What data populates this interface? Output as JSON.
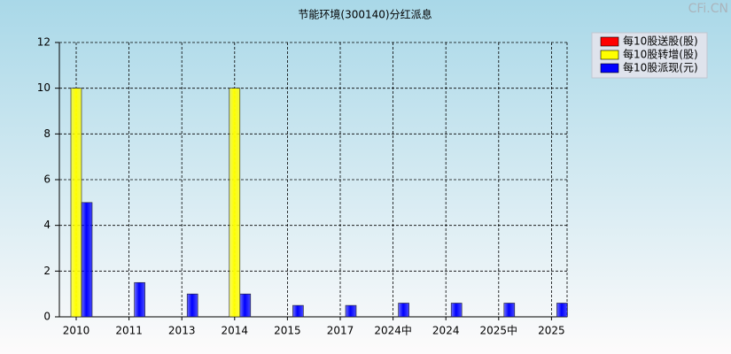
{
  "chart_data": {
    "type": "bar",
    "title": "节能环境(300140)分红派息",
    "watermark": "CFi.CN",
    "categories": [
      "2010",
      "2011",
      "2013",
      "2014",
      "2015",
      "2017",
      "2024中",
      "2024",
      "2025中",
      "2025"
    ],
    "series": [
      {
        "name": "每10股送股(股)",
        "color": "#ff0000",
        "values": [
          0,
          0,
          0,
          0,
          0,
          0,
          0,
          0,
          0,
          0
        ]
      },
      {
        "name": "每10股转增(股)",
        "color": "#ffff00",
        "values": [
          10,
          0,
          0,
          10,
          0,
          0,
          0,
          0,
          0,
          0
        ]
      },
      {
        "name": "每10股派现(元)",
        "color": "#0000ff",
        "values": [
          5,
          1.5,
          1,
          1,
          0.5,
          0.5,
          0.6,
          0.6,
          0.6,
          0.6
        ]
      }
    ],
    "ylim": [
      0,
      12
    ],
    "yticks": [
      0,
      2,
      4,
      6,
      8,
      10,
      12
    ],
    "grid": true,
    "legend": "top-right"
  }
}
